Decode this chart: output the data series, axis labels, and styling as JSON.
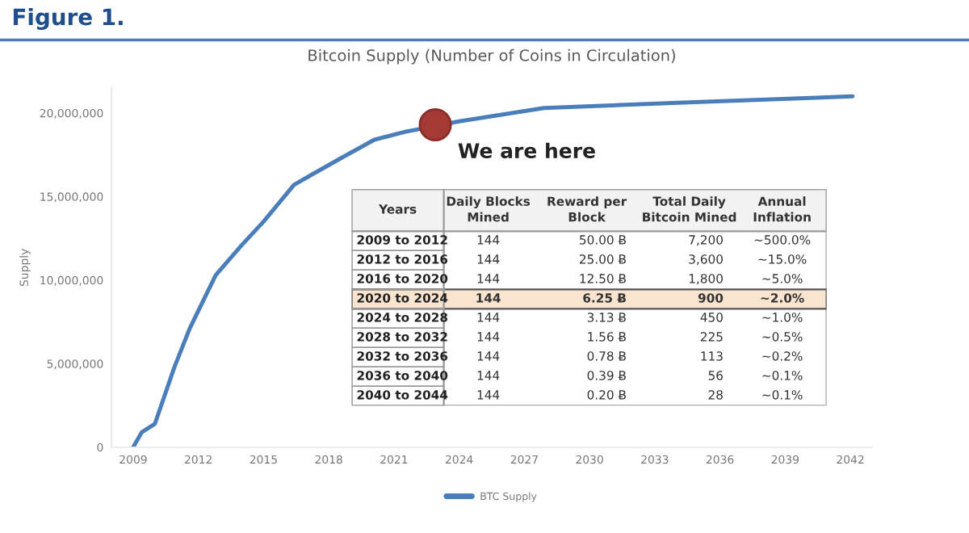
{
  "chart_data": [
    {
      "type": "line",
      "title": "Bitcoin Supply (Number of Coins in Circulation)",
      "ylabel": "Supply",
      "x": [
        2009,
        2009.4,
        2010,
        2010.9,
        2011.6,
        2012.8,
        2014.0,
        2015.0,
        2016.4,
        2017.2,
        2018.7,
        2020.1,
        2021.6,
        2024.0,
        2027.9,
        2033.8,
        2042.1
      ],
      "series": [
        {
          "name": "BTC Supply",
          "color": "#4a7ebb",
          "values": [
            0,
            900000,
            1400000,
            4800000,
            7100000,
            10300000,
            12100000,
            13500000,
            15700000,
            16300000,
            17400000,
            18400000,
            18900000,
            19500000,
            20300000,
            20600000,
            21000000
          ]
        },
        {
          "type": "scatter",
          "color": "#a33a35",
          "x": [
            2022.9
          ],
          "values": [
            19300000
          ]
        }
      ],
      "xlim": [
        2008,
        2043
      ],
      "xticks": [
        2009,
        2012,
        2015,
        2018,
        2021,
        2024,
        2027,
        2030,
        2033,
        2036,
        2039,
        2042
      ],
      "ylim": [
        0,
        21500000
      ],
      "yticks": [
        0,
        {
          "value": 5000000,
          "label": "5,000,000"
        },
        {
          "value": 10000000,
          "label": "10,000,000"
        },
        {
          "value": 15000000,
          "label": "15,000,000"
        },
        {
          "value": 20000000,
          "label": "20,000,000"
        }
      ],
      "annotations": [
        "Figure 1.",
        {
          "text": "We are here",
          "x": 2022.9,
          "y": 19300000
        }
      ],
      "legend": "bottom",
      "grid": false
    },
    {
      "type": "other",
      "categories": [
        "Years",
        "Daily Blocks\nMined",
        "Reward per\nBlock",
        "Total Daily\nBitcoin Mined",
        "Annual\nInflation"
      ],
      "y_categories": [
        "2009 to 2012",
        "2012 to 2016",
        "2016 to 2020",
        "2020 to 2024",
        "2024 to 2028",
        "2028 to 2032",
        "2032 to 2036",
        "2036 to 2040",
        "2040 to 2044"
      ],
      "cell_labels": [
        [
          "144",
          "50.00 Ƀ",
          "7,200",
          "~500.0%"
        ],
        [
          "144",
          "25.00 Ƀ",
          "3,600",
          "~15.0%"
        ],
        [
          "144",
          "12.50 Ƀ",
          "1,800",
          "~5.0%"
        ],
        [
          "144",
          "6.25 Ƀ",
          "900",
          "~2.0%"
        ],
        [
          "144",
          "3.13 Ƀ",
          "450",
          "~1.0%"
        ],
        [
          "144",
          "1.56 Ƀ",
          "225",
          "~0.5%"
        ],
        [
          "144",
          "0.78 Ƀ",
          "113",
          "~0.2%"
        ],
        [
          "144",
          "0.39 Ƀ",
          "56",
          "~0.1%"
        ],
        [
          "144",
          "0.20 Ƀ",
          "28",
          "~0.1%"
        ]
      ],
      "colors": [
        null,
        null,
        null,
        "#f8e4cf",
        null,
        null,
        null,
        null,
        null
      ]
    }
  ]
}
